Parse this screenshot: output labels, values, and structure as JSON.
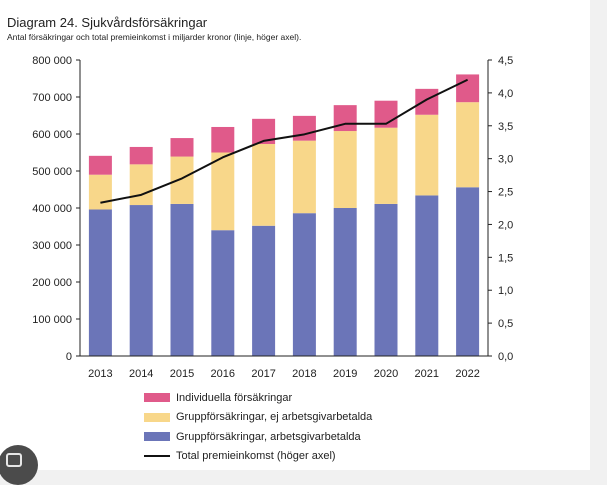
{
  "chart_data": {
    "type": "bar",
    "title": "Diagram 24. Sjukvårdsförsäkringar",
    "subtitle": "Antal försäkringar och total premieinkomst i miljarder kronor (linje, höger axel).",
    "categories": [
      "2013",
      "2014",
      "2015",
      "2016",
      "2017",
      "2018",
      "2019",
      "2020",
      "2021",
      "2022"
    ],
    "stacked": true,
    "series": [
      {
        "name": "Gruppförsäkringar, arbetsgivarbetalda",
        "color": "#6b75b8",
        "values": [
          396000,
          408000,
          411000,
          340000,
          352000,
          386000,
          400000,
          411000,
          434000,
          456000
        ]
      },
      {
        "name": "Gruppförsäkringar, ej arbetsgivarbetalda",
        "color": "#f8d78a",
        "values": [
          94000,
          110000,
          128000,
          210000,
          221000,
          196000,
          208000,
          206000,
          218000,
          230000
        ]
      },
      {
        "name": "Individuella försäkringar",
        "color": "#e05a8a",
        "values": [
          51000,
          47000,
          50000,
          69000,
          68000,
          67000,
          70000,
          73000,
          70000,
          75000
        ]
      }
    ],
    "line_series": {
      "name": "Total premieinkomst (höger axel)",
      "color": "#111111",
      "axis": "right",
      "values": [
        2.33,
        2.45,
        2.7,
        3.02,
        3.27,
        3.37,
        3.53,
        3.53,
        3.9,
        4.2
      ]
    },
    "y_left": {
      "min": 0,
      "max": 800000,
      "ticks": [
        "0",
        "100 000",
        "200 000",
        "300 000",
        "400 000",
        "500 000",
        "600 000",
        "700 000",
        "800 000"
      ]
    },
    "y_right": {
      "min": 0,
      "max": 4.5,
      "ticks": [
        "0,0",
        "0,5",
        "1,0",
        "1,5",
        "2,0",
        "2,5",
        "3,0",
        "3,5",
        "4,0",
        "4,5"
      ]
    },
    "grid": false,
    "legend_position": "bottom"
  },
  "legend": [
    {
      "label": "Individuella försäkringar",
      "color": "#e05a8a",
      "kind": "bar"
    },
    {
      "label": "Gruppförsäkringar, ej arbetsgivarbetalda",
      "color": "#f8d78a",
      "kind": "bar"
    },
    {
      "label": "Gruppförsäkringar, arbetsgivarbetalda",
      "color": "#6b75b8",
      "kind": "bar"
    },
    {
      "label": "Total premieinkomst (höger axel)",
      "color": "#111111",
      "kind": "line"
    }
  ]
}
